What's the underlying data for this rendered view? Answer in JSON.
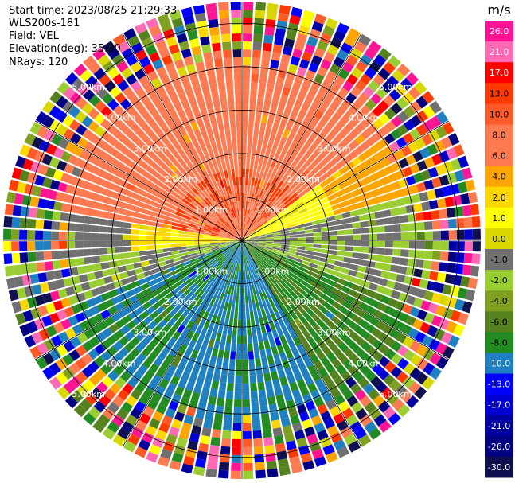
{
  "header": {
    "start_time": "Start time: 2023/08/25 21:29:33",
    "site": "WLS200s-181",
    "field": "Field: VEL",
    "elevation": "Elevation(deg): 35.30",
    "nrays": "NRays: 120"
  },
  "chart_data": {
    "type": "heatmap",
    "projection": "polar-ppi",
    "field": "VEL",
    "unit": "m/s",
    "n_rays": 120,
    "n_gates": 30,
    "max_range_km": 5.5,
    "range_rings_km": [
      1.0,
      2.0,
      3.0,
      4.0,
      5.0
    ],
    "ring_labels": [
      "1.00km",
      "2.00km",
      "3.00km",
      "4.00km",
      "5.00km"
    ],
    "radial_spoke_angles_deg": [
      0,
      30,
      60,
      90,
      120,
      150,
      180,
      210,
      240,
      270,
      300,
      330
    ],
    "colorbar": {
      "unit_label": "m/s",
      "ticks": [
        "26.0",
        "21.0",
        "17.0",
        "13.0",
        "10.0",
        "8.0",
        "6.0",
        "4.0",
        "2.0",
        "1.0",
        "0.0",
        "-1.0",
        "-2.0",
        "-4.0",
        "-6.0",
        "-8.0",
        "-10.0",
        "-13.0",
        "-17.0",
        "-21.0",
        "-26.0",
        "-30.0"
      ],
      "colors": [
        "#ff1493",
        "#ff69b4",
        "#ff0000",
        "#ff3a00",
        "#ff5a28",
        "#ff7a50",
        "#ff7a50",
        "#ffa500",
        "#ffd700",
        "#ffff00",
        "#d8d800",
        "#707070",
        "#9acd32",
        "#7fa020",
        "#55821e",
        "#228b22",
        "#1e80c0",
        "#0000ff",
        "#0000d0",
        "#0000a0",
        "#000080",
        "#101050"
      ]
    }
  }
}
